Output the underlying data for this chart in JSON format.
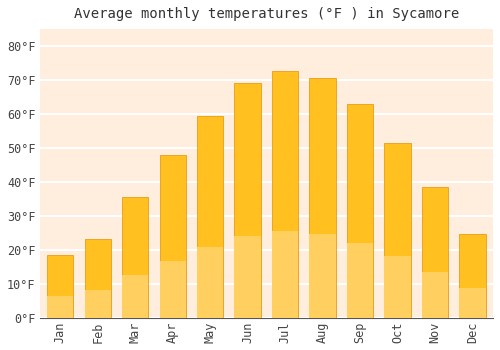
{
  "title": "Average monthly temperatures (°F ) in Sycamore",
  "months": [
    "Jan",
    "Feb",
    "Mar",
    "Apr",
    "May",
    "Jun",
    "Jul",
    "Aug",
    "Sep",
    "Oct",
    "Nov",
    "Dec"
  ],
  "values": [
    18.5,
    23,
    35.5,
    48,
    59.5,
    69,
    72.5,
    70.5,
    63,
    51.5,
    38.5,
    24.5
  ],
  "bar_color_top": "#FFC020",
  "bar_color_bottom": "#FFA020",
  "bar_edge_color": "#E89000",
  "background_color": "#FFFFFF",
  "plot_bg_color": "#FFEEDD",
  "grid_color": "#FFFFFF",
  "ytick_labels": [
    "0°F",
    "10°F",
    "20°F",
    "30°F",
    "40°F",
    "50°F",
    "60°F",
    "70°F",
    "80°F"
  ],
  "ytick_values": [
    0,
    10,
    20,
    30,
    40,
    50,
    60,
    70,
    80
  ],
  "ylim": [
    0,
    85
  ],
  "title_fontsize": 10,
  "tick_fontsize": 8.5,
  "font_family": "monospace"
}
